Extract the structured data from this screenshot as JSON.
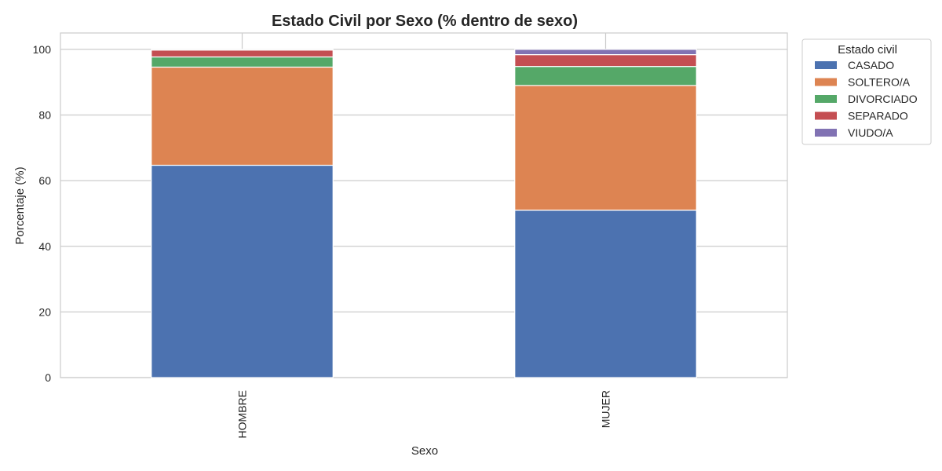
{
  "chart_data": {
    "type": "bar",
    "stacked": true,
    "title": "Estado Civil por Sexo (% dentro de sexo)",
    "xlabel": "Sexo",
    "ylabel": "Porcentaje (%)",
    "categories": [
      "HOMBRE",
      "MUJER"
    ],
    "ylim": [
      0,
      105
    ],
    "yticks": [
      0,
      20,
      40,
      60,
      80,
      100
    ],
    "grid": true,
    "legend": {
      "title": "Estado civil",
      "placement": "outside-top-right"
    },
    "series": [
      {
        "name": "CASADO",
        "color": "#4c72b0",
        "values": [
          64.7,
          51.0
        ]
      },
      {
        "name": "SOLTERO/A",
        "color": "#dd8452",
        "values": [
          29.9,
          38.0
        ]
      },
      {
        "name": "DIVORCIADO",
        "color": "#55a868",
        "values": [
          3.1,
          5.8
        ]
      },
      {
        "name": "SEPARADO",
        "color": "#c44e52",
        "values": [
          2.1,
          3.6
        ]
      },
      {
        "name": "VIUDO/A",
        "color": "#8172b3",
        "values": [
          0.2,
          1.6
        ]
      }
    ]
  }
}
